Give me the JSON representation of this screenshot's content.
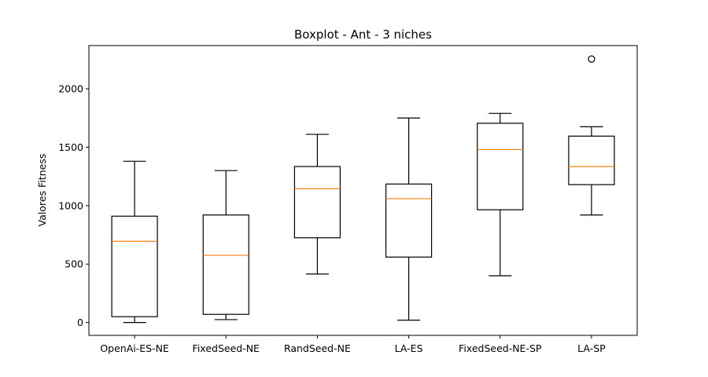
{
  "chart_data": {
    "type": "boxplot",
    "title": "Boxplot - Ant - 3 niches",
    "xlabel": "",
    "ylabel": "Valores Fitness",
    "ylim": [
      -110,
      2370
    ],
    "yticks": [
      0,
      500,
      1000,
      1500,
      2000
    ],
    "grid": false,
    "categories": [
      "OpenAi-ES-NE",
      "FixedSeed-NE",
      "RandSeed-NE",
      "LA-ES",
      "FixedSeed-NE-SP",
      "LA-SP"
    ],
    "boxes": [
      {
        "whisker_low": 0,
        "q1": 50,
        "median": 695,
        "q3": 910,
        "whisker_high": 1380,
        "outliers": []
      },
      {
        "whisker_low": 25,
        "q1": 70,
        "median": 575,
        "q3": 920,
        "whisker_high": 1300,
        "outliers": []
      },
      {
        "whisker_low": 415,
        "q1": 725,
        "median": 1145,
        "q3": 1335,
        "whisker_high": 1610,
        "outliers": []
      },
      {
        "whisker_low": 20,
        "q1": 560,
        "median": 1060,
        "q3": 1185,
        "whisker_high": 1750,
        "outliers": []
      },
      {
        "whisker_low": 400,
        "q1": 965,
        "median": 1480,
        "q3": 1705,
        "whisker_high": 1790,
        "outliers": []
      },
      {
        "whisker_low": 920,
        "q1": 1180,
        "median": 1335,
        "q3": 1595,
        "whisker_high": 1675,
        "outliers": [
          2255
        ]
      }
    ],
    "colors": {
      "box": "#000000",
      "median": "#ff7f0e",
      "flier": "#000000"
    }
  }
}
